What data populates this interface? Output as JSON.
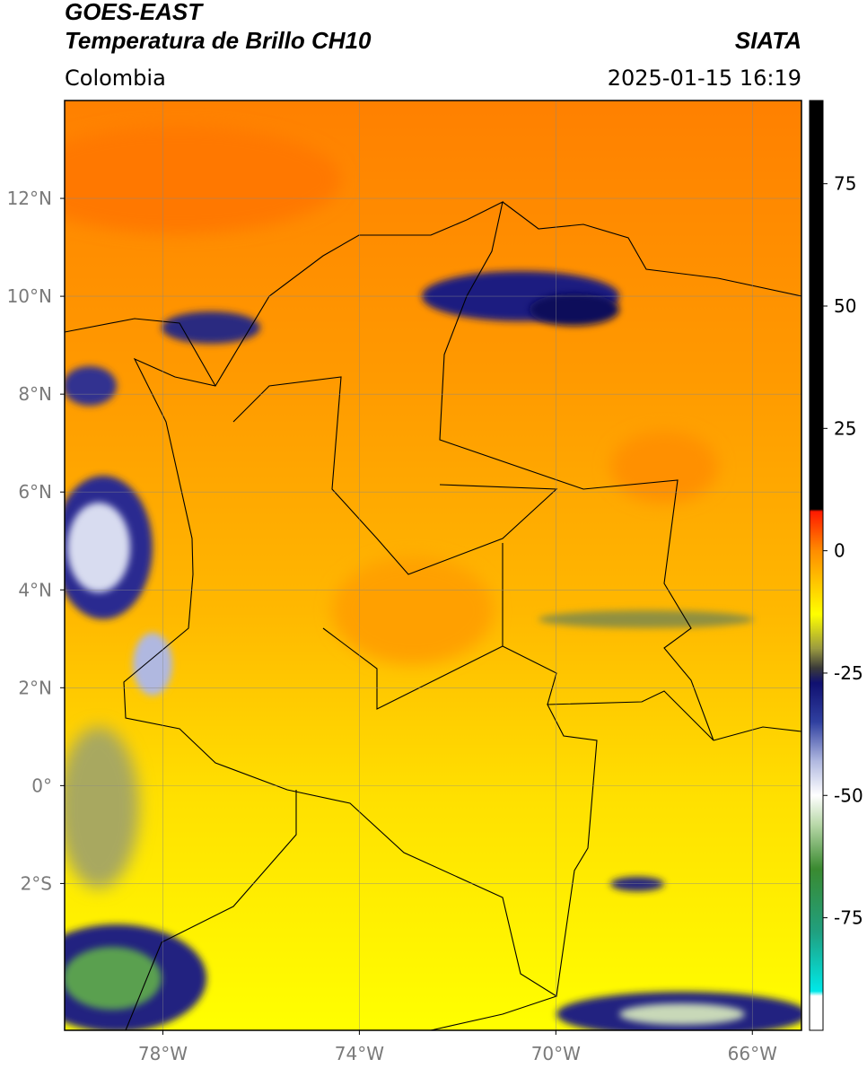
{
  "title": "GOES-EAST",
  "subtitle": "Temperatura de Brillo CH10",
  "source": "SIATA",
  "region": "Colombia",
  "timestamp": "2025-01-15 16:19",
  "map": {
    "xlim": [
      -80,
      -65
    ],
    "ylim": [
      -5,
      14
    ],
    "grid": true,
    "xticks": [
      {
        "value": -78,
        "label": "78°W"
      },
      {
        "value": -74,
        "label": "74°W"
      },
      {
        "value": -70,
        "label": "70°W"
      },
      {
        "value": -66,
        "label": "66°W"
      }
    ],
    "yticks": [
      {
        "value": 12,
        "label": "12°N"
      },
      {
        "value": 10,
        "label": "10°N"
      },
      {
        "value": 8,
        "label": "8°N"
      },
      {
        "value": 6,
        "label": "6°N"
      },
      {
        "value": 4,
        "label": "4°N"
      },
      {
        "value": 2,
        "label": "2°N"
      },
      {
        "value": 0,
        "label": "0°"
      },
      {
        "value": -2,
        "label": "2°S"
      }
    ]
  },
  "colorbar": {
    "lim": [
      -98,
      92
    ],
    "ticks": [
      75,
      50,
      25,
      0,
      -25,
      -50,
      -75
    ],
    "stops": [
      {
        "value": 92,
        "color": "#000000"
      },
      {
        "value": 8.5,
        "color": "#000000"
      },
      {
        "value": 8,
        "color": "#ff1a00"
      },
      {
        "value": 0,
        "color": "#ff8c00"
      },
      {
        "value": -13,
        "color": "#ffff00"
      },
      {
        "value": -20,
        "color": "#9a9a40"
      },
      {
        "value": -24,
        "color": "#3a3a3a"
      },
      {
        "value": -27,
        "color": "#101070"
      },
      {
        "value": -35,
        "color": "#3040a0"
      },
      {
        "value": -43,
        "color": "#b0b8e0"
      },
      {
        "value": -50,
        "color": "#ffffff"
      },
      {
        "value": -56,
        "color": "#b8d8a8"
      },
      {
        "value": -65,
        "color": "#3a8a30"
      },
      {
        "value": -78,
        "color": "#20a080"
      },
      {
        "value": -90,
        "color": "#00e8e8"
      },
      {
        "value": -91,
        "color": "#ffffff"
      },
      {
        "value": -98,
        "color": "#ffffff"
      }
    ]
  }
}
